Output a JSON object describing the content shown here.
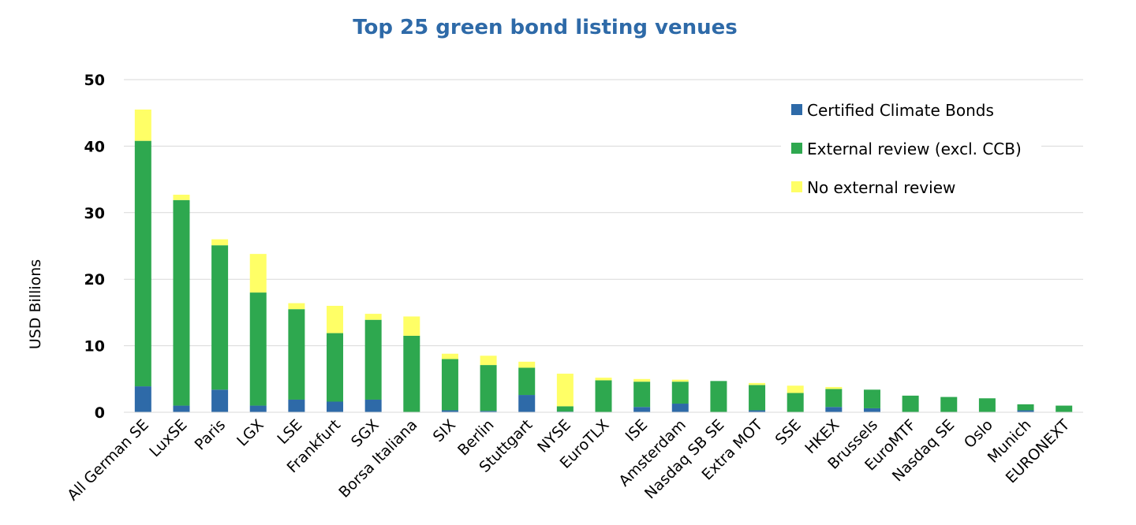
{
  "chart_data": {
    "type": "bar",
    "stacked": true,
    "title": "Top 25 green bond listing venues",
    "ylabel": "USD Billions",
    "xlabel": "",
    "ylim": [
      0,
      50
    ],
    "yticks": [
      0,
      10,
      20,
      30,
      40,
      50
    ],
    "grid": true,
    "legend_position": "top-right",
    "categories": [
      "All German SE",
      "LuxSE",
      "Paris",
      "LGX",
      "LSE",
      "Frankfurt",
      "SGX",
      "Borsa Italiana",
      "SIX",
      "Berlin",
      "Stuttgart",
      "NYSE",
      "EuroTLX",
      "ISE",
      "Amsterdam",
      "Nasdaq SB SE",
      "Extra MOT",
      "SSE",
      "HKEX",
      "Brussels",
      "EuroMTF",
      "Nasdaq SE",
      "Oslo",
      "Munich",
      "EURONEXT"
    ],
    "series": [
      {
        "name": "Certified Climate Bonds",
        "color": "#2e6aa8",
        "values": [
          3.9,
          1.0,
          3.4,
          1.0,
          1.9,
          1.6,
          1.9,
          0.0,
          0.3,
          0.2,
          2.6,
          0.1,
          0.0,
          0.8,
          1.3,
          0.0,
          0.3,
          0.0,
          0.8,
          0.6,
          0.0,
          0.0,
          0.0,
          0.3,
          0.0
        ]
      },
      {
        "name": "External review (excl. CCB)",
        "color": "#2ea84f",
        "values": [
          36.9,
          30.9,
          21.7,
          17.0,
          13.6,
          10.3,
          12.0,
          11.5,
          7.7,
          6.9,
          4.1,
          0.8,
          4.8,
          3.8,
          3.3,
          4.7,
          3.8,
          2.9,
          2.7,
          2.8,
          2.5,
          2.3,
          2.1,
          0.9,
          1.0
        ]
      },
      {
        "name": "No external review",
        "color": "#ffff66",
        "values": [
          4.7,
          0.8,
          0.9,
          5.8,
          0.9,
          4.1,
          0.9,
          2.9,
          0.8,
          1.4,
          0.9,
          4.9,
          0.4,
          0.4,
          0.3,
          0.0,
          0.3,
          1.1,
          0.3,
          0.0,
          0.0,
          0.0,
          0.0,
          0.0,
          0.0
        ]
      }
    ]
  }
}
